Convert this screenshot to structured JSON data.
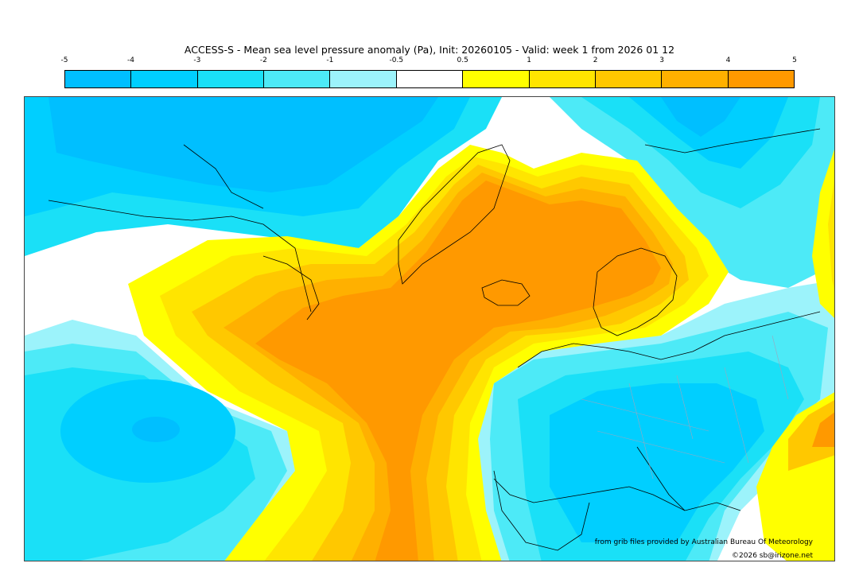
{
  "title": "ACCESS-S - Mean sea level pressure anomaly (Pa), Init: 20260105 - Valid: week 1 from 2026 01 12",
  "colorbar": {
    "ticks": [
      "-5",
      "-4",
      "-3",
      "-2",
      "-1",
      "-0.5",
      "0.5",
      "1",
      "2",
      "3",
      "4",
      "5"
    ],
    "colors": [
      "#00bfff",
      "#00cfff",
      "#1ae0f7",
      "#4deaf7",
      "#9cf3fb",
      "#ffffff",
      "#ffff00",
      "#ffe500",
      "#ffc800",
      "#ffb000",
      "#ff9900"
    ]
  },
  "map": {
    "projection": "Polar/North Atlantic sector",
    "ocean_base_color": "#ffffff",
    "coastline_color": "#000000",
    "border_color": "#9aa6c0"
  },
  "credit": "from grib files provided by Australian Bureau Of Meteorology",
  "copyright": "©2026 sb@irizone.net"
}
